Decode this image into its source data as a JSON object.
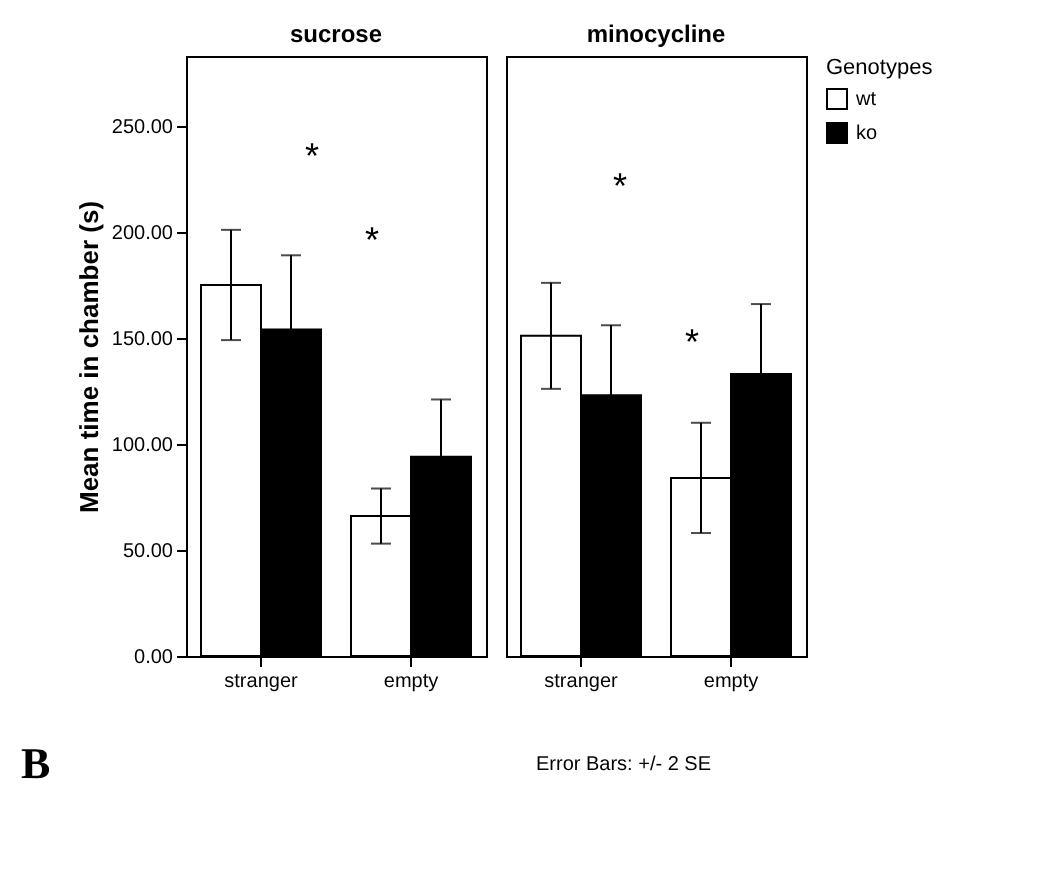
{
  "chart_data": [
    {
      "type": "bar",
      "title": "sucrose",
      "ylabel": "Mean time in chamber (s)",
      "categories": [
        "stranger",
        "empty"
      ],
      "series": [
        {
          "color": "#ffffff",
          "values": [
            175,
            66
          ],
          "errors": [
            26,
            13
          ]
        },
        {
          "color": "#000000",
          "values": [
            154,
            94
          ],
          "errors": [
            35,
            27
          ]
        }
      ],
      "ylim": [
        0,
        283
      ],
      "yticks": [
        {
          "value": 0,
          "label": "0.00"
        },
        {
          "value": 50,
          "label": "50.00"
        },
        {
          "value": 100,
          "label": "100.00"
        },
        {
          "value": 150,
          "label": "150.00"
        },
        {
          "value": 200,
          "label": "200.00"
        },
        {
          "value": 250,
          "label": "250.00"
        }
      ],
      "annotations": [
        "*",
        "*",
        "B"
      ]
    },
    {
      "type": "bar",
      "title": "minocycline",
      "legend_title": "Genotypes",
      "categories": [
        "stranger",
        "empty"
      ],
      "series": [
        {
          "name": "wt",
          "color": "#ffffff",
          "values": [
            151,
            84
          ],
          "errors": [
            25,
            26
          ]
        },
        {
          "name": "ko",
          "color": "#000000",
          "values": [
            123,
            133
          ],
          "errors": [
            33,
            33
          ]
        }
      ],
      "ylim": [
        0,
        283
      ],
      "tick_labels": "x",
      "annotations": [
        "*",
        "*",
        "Error Bars: +/- 2 SE"
      ],
      "legend": "top right"
    }
  ]
}
